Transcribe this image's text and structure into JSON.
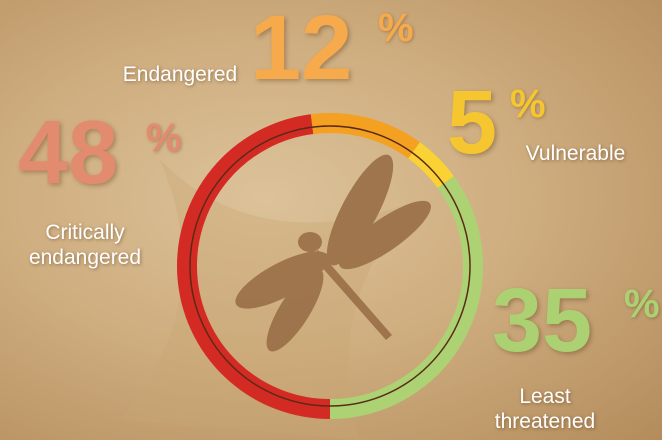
{
  "chart_data": {
    "type": "donut",
    "categories": [
      "Critically endangered",
      "Endangered",
      "Vulnerable",
      "Least threatened"
    ],
    "values": [
      48,
      12,
      5,
      35
    ],
    "unit": "%",
    "colors": [
      "#d42a24",
      "#f4a020",
      "#fbd233",
      "#acd273"
    ]
  }
}
